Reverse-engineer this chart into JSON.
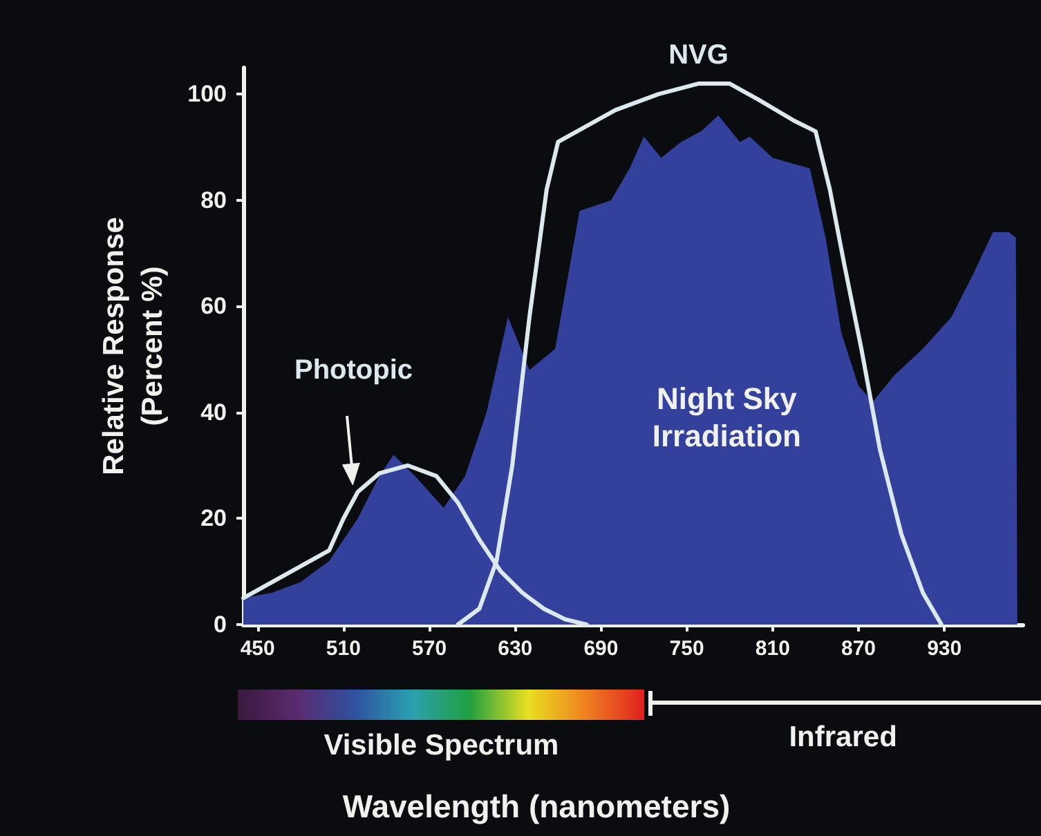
{
  "chart_data": {
    "type": "line",
    "xlabel": "Wavelength (nanometers)",
    "ylabel": "Relative Response\n(Percent %)",
    "xlim": [
      440,
      985
    ],
    "xticks": [
      450,
      510,
      570,
      630,
      690,
      750,
      810,
      870,
      930
    ],
    "ylim": [
      0,
      105
    ],
    "yticks": [
      0,
      20,
      40,
      60,
      80,
      100
    ],
    "grid": false,
    "legend": false,
    "marker": "none",
    "line_style": "solid",
    "series": [
      {
        "name": "Night Sky Irradiation",
        "type": "area",
        "color": "#33419c",
        "x": [
          440,
          460,
          480,
          500,
          520,
          535,
          545,
          560,
          580,
          595,
          610,
          625,
          640,
          658,
          675,
          697,
          710,
          720,
          732,
          746,
          760,
          772,
          787,
          794,
          810,
          836,
          847,
          858,
          870,
          880,
          895,
          915,
          935,
          950,
          964,
          975,
          980,
          981
        ],
        "values": [
          5,
          6,
          8,
          12,
          20,
          28,
          32,
          28,
          22,
          28,
          40,
          58,
          48,
          52,
          78,
          80,
          86,
          92,
          88,
          91,
          93,
          96,
          91,
          92,
          88,
          86,
          73,
          55,
          45,
          42,
          47,
          52,
          58,
          66,
          74,
          74,
          73,
          0
        ]
      },
      {
        "name": "Photopic",
        "color": "#dbe9ee",
        "x": [
          440,
          460,
          480,
          500,
          510,
          520,
          535,
          555,
          575,
          590,
          605,
          620,
          635,
          650,
          665,
          680
        ],
        "values": [
          5,
          8,
          11,
          14,
          20,
          25,
          28.5,
          30,
          28,
          23,
          16,
          10,
          6,
          3,
          1,
          0
        ]
      },
      {
        "name": "NVG",
        "color": "#dbe9ee",
        "x": [
          590,
          605,
          617,
          628,
          640,
          652,
          660,
          680,
          700,
          730,
          758,
          780,
          800,
          825,
          840,
          850,
          860,
          872,
          885,
          900,
          915,
          928
        ],
        "values": [
          0,
          3,
          12,
          30,
          58,
          82,
          91,
          94,
          97,
          100,
          102,
          102,
          99,
          95,
          93,
          82,
          68,
          52,
          33,
          17,
          6,
          0
        ]
      }
    ],
    "annotations": [
      "Visible Spectrum",
      "Infrared"
    ]
  }
}
